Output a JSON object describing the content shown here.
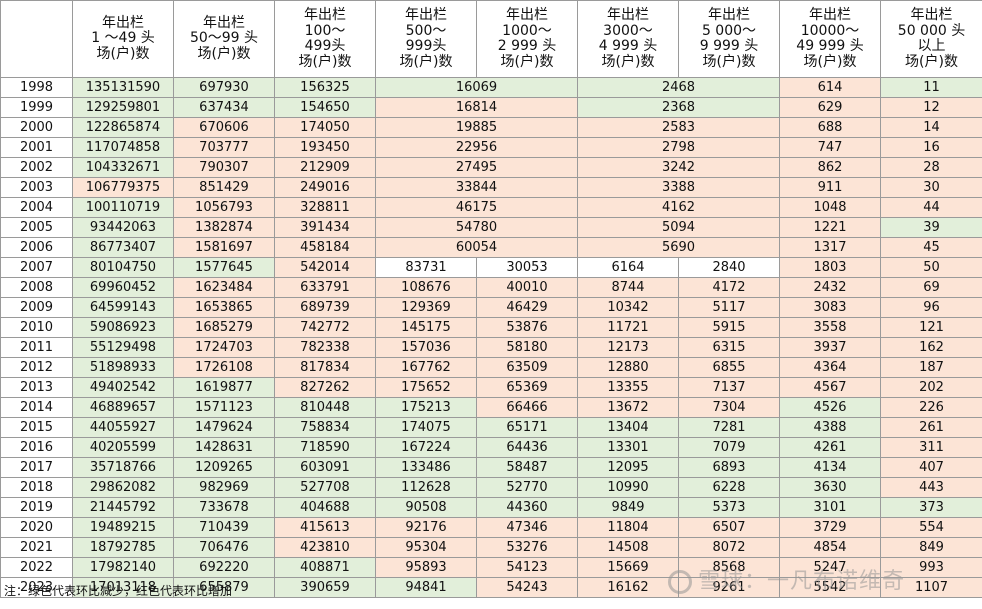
{
  "headers": [
    "",
    "年出栏\n1 ～49 头\n场(户)数",
    "年出栏\n50～99 头\n场(户)数",
    "年出栏\n100～\n499头\n场(户)数",
    "年出栏\n500～\n999头\n场(户)数",
    "年出栏\n1000～\n2 999 头\n场(户)数",
    "年出栏\n3000～\n4 999 头\n场(户)数",
    "年出栏\n5 000～\n9 999 头\n场(户)数",
    "年出栏\n10000～\n49 999 头\n场(户)数",
    "年出栏\n50 000 头\n以上\n场(户)数"
  ],
  "rows": [
    {
      "cells": [
        [
          "1998",
          "year",
          1
        ],
        [
          "135131590",
          "g",
          1
        ],
        [
          "697930",
          "g",
          1
        ],
        [
          "156325",
          "g",
          1
        ],
        [
          "16069",
          "g",
          2
        ],
        [
          "2468",
          "g",
          2
        ],
        [
          "614",
          "r",
          1
        ],
        [
          "11",
          "g",
          1
        ]
      ]
    },
    {
      "cells": [
        [
          "1999",
          "year",
          1
        ],
        [
          "129259801",
          "g",
          1
        ],
        [
          "637434",
          "g",
          1
        ],
        [
          "154650",
          "g",
          1
        ],
        [
          "16814",
          "r",
          2
        ],
        [
          "2368",
          "g",
          2
        ],
        [
          "629",
          "r",
          1
        ],
        [
          "12",
          "r",
          1
        ]
      ]
    },
    {
      "cells": [
        [
          "2000",
          "year",
          1
        ],
        [
          "122865874",
          "g",
          1
        ],
        [
          "670606",
          "r",
          1
        ],
        [
          "174050",
          "r",
          1
        ],
        [
          "19885",
          "r",
          2
        ],
        [
          "2583",
          "r",
          2
        ],
        [
          "688",
          "r",
          1
        ],
        [
          "14",
          "r",
          1
        ]
      ]
    },
    {
      "cells": [
        [
          "2001",
          "year",
          1
        ],
        [
          "117074858",
          "g",
          1
        ],
        [
          "703777",
          "r",
          1
        ],
        [
          "193450",
          "r",
          1
        ],
        [
          "22956",
          "r",
          2
        ],
        [
          "2798",
          "r",
          2
        ],
        [
          "747",
          "r",
          1
        ],
        [
          "16",
          "r",
          1
        ]
      ]
    },
    {
      "cells": [
        [
          "2002",
          "year",
          1
        ],
        [
          "104332671",
          "g",
          1
        ],
        [
          "790307",
          "r",
          1
        ],
        [
          "212909",
          "r",
          1
        ],
        [
          "27495",
          "r",
          2
        ],
        [
          "3242",
          "r",
          2
        ],
        [
          "862",
          "r",
          1
        ],
        [
          "28",
          "r",
          1
        ]
      ]
    },
    {
      "cells": [
        [
          "2003",
          "year",
          1
        ],
        [
          "106779375",
          "r",
          1
        ],
        [
          "851429",
          "r",
          1
        ],
        [
          "249016",
          "r",
          1
        ],
        [
          "33844",
          "r",
          2
        ],
        [
          "3388",
          "r",
          2
        ],
        [
          "911",
          "r",
          1
        ],
        [
          "30",
          "r",
          1
        ]
      ]
    },
    {
      "cells": [
        [
          "2004",
          "year",
          1
        ],
        [
          "100110719",
          "g",
          1
        ],
        [
          "1056793",
          "r",
          1
        ],
        [
          "328811",
          "r",
          1
        ],
        [
          "46175",
          "r",
          2
        ],
        [
          "4162",
          "r",
          2
        ],
        [
          "1048",
          "r",
          1
        ],
        [
          "44",
          "r",
          1
        ]
      ]
    },
    {
      "cells": [
        [
          "2005",
          "year",
          1
        ],
        [
          "93442063",
          "g",
          1
        ],
        [
          "1382874",
          "r",
          1
        ],
        [
          "391434",
          "r",
          1
        ],
        [
          "54780",
          "r",
          2
        ],
        [
          "5094",
          "r",
          2
        ],
        [
          "1221",
          "r",
          1
        ],
        [
          "39",
          "g",
          1
        ]
      ]
    },
    {
      "cells": [
        [
          "2006",
          "year",
          1
        ],
        [
          "86773407",
          "g",
          1
        ],
        [
          "1581697",
          "r",
          1
        ],
        [
          "458184",
          "r",
          1
        ],
        [
          "60054",
          "r",
          2
        ],
        [
          "5690",
          "r",
          2
        ],
        [
          "1317",
          "r",
          1
        ],
        [
          "45",
          "r",
          1
        ]
      ]
    },
    {
      "cells": [
        [
          "2007",
          "year",
          1
        ],
        [
          "80104750",
          "g",
          1
        ],
        [
          "1577645",
          "g",
          1
        ],
        [
          "542014",
          "r",
          1
        ],
        [
          "83731",
          "w",
          1
        ],
        [
          "30053",
          "w",
          1
        ],
        [
          "6164",
          "w",
          1
        ],
        [
          "2840",
          "w",
          1
        ],
        [
          "1803",
          "r",
          1
        ],
        [
          "50",
          "r",
          1
        ]
      ]
    },
    {
      "cells": [
        [
          "2008",
          "year",
          1
        ],
        [
          "69960452",
          "g",
          1
        ],
        [
          "1623484",
          "r",
          1
        ],
        [
          "633791",
          "r",
          1
        ],
        [
          "108676",
          "r",
          1
        ],
        [
          "40010",
          "r",
          1
        ],
        [
          "8744",
          "r",
          1
        ],
        [
          "4172",
          "r",
          1
        ],
        [
          "2432",
          "r",
          1
        ],
        [
          "69",
          "r",
          1
        ]
      ]
    },
    {
      "cells": [
        [
          "2009",
          "year",
          1
        ],
        [
          "64599143",
          "g",
          1
        ],
        [
          "1653865",
          "r",
          1
        ],
        [
          "689739",
          "r",
          1
        ],
        [
          "129369",
          "r",
          1
        ],
        [
          "46429",
          "r",
          1
        ],
        [
          "10342",
          "r",
          1
        ],
        [
          "5117",
          "r",
          1
        ],
        [
          "3083",
          "r",
          1
        ],
        [
          "96",
          "r",
          1
        ]
      ]
    },
    {
      "cells": [
        [
          "2010",
          "year",
          1
        ],
        [
          "59086923",
          "g",
          1
        ],
        [
          "1685279",
          "r",
          1
        ],
        [
          "742772",
          "r",
          1
        ],
        [
          "145175",
          "r",
          1
        ],
        [
          "53876",
          "r",
          1
        ],
        [
          "11721",
          "r",
          1
        ],
        [
          "5915",
          "r",
          1
        ],
        [
          "3558",
          "r",
          1
        ],
        [
          "121",
          "r",
          1
        ]
      ]
    },
    {
      "cells": [
        [
          "2011",
          "year",
          1
        ],
        [
          "55129498",
          "g",
          1
        ],
        [
          "1724703",
          "r",
          1
        ],
        [
          "782338",
          "r",
          1
        ],
        [
          "157036",
          "r",
          1
        ],
        [
          "58180",
          "r",
          1
        ],
        [
          "12173",
          "r",
          1
        ],
        [
          "6315",
          "r",
          1
        ],
        [
          "3937",
          "r",
          1
        ],
        [
          "162",
          "r",
          1
        ]
      ]
    },
    {
      "cells": [
        [
          "2012",
          "year",
          1
        ],
        [
          "51898933",
          "g",
          1
        ],
        [
          "1726108",
          "r",
          1
        ],
        [
          "817834",
          "r",
          1
        ],
        [
          "167762",
          "r",
          1
        ],
        [
          "63509",
          "r",
          1
        ],
        [
          "12880",
          "r",
          1
        ],
        [
          "6855",
          "r",
          1
        ],
        [
          "4364",
          "r",
          1
        ],
        [
          "187",
          "r",
          1
        ]
      ]
    },
    {
      "cells": [
        [
          "2013",
          "year",
          1
        ],
        [
          "49402542",
          "g",
          1
        ],
        [
          "1619877",
          "g",
          1
        ],
        [
          "827262",
          "r",
          1
        ],
        [
          "175652",
          "r",
          1
        ],
        [
          "65369",
          "r",
          1
        ],
        [
          "13355",
          "r",
          1
        ],
        [
          "7137",
          "r",
          1
        ],
        [
          "4567",
          "r",
          1
        ],
        [
          "202",
          "r",
          1
        ]
      ]
    },
    {
      "cells": [
        [
          "2014",
          "year",
          1
        ],
        [
          "46889657",
          "g",
          1
        ],
        [
          "1571123",
          "g",
          1
        ],
        [
          "810448",
          "g",
          1
        ],
        [
          "175213",
          "g",
          1
        ],
        [
          "66466",
          "r",
          1
        ],
        [
          "13672",
          "r",
          1
        ],
        [
          "7304",
          "r",
          1
        ],
        [
          "4526",
          "g",
          1
        ],
        [
          "226",
          "r",
          1
        ]
      ]
    },
    {
      "cells": [
        [
          "2015",
          "year",
          1
        ],
        [
          "44055927",
          "g",
          1
        ],
        [
          "1479624",
          "g",
          1
        ],
        [
          "758834",
          "g",
          1
        ],
        [
          "174075",
          "g",
          1
        ],
        [
          "65171",
          "g",
          1
        ],
        [
          "13404",
          "g",
          1
        ],
        [
          "7281",
          "g",
          1
        ],
        [
          "4388",
          "g",
          1
        ],
        [
          "261",
          "r",
          1
        ]
      ]
    },
    {
      "cells": [
        [
          "2016",
          "year",
          1
        ],
        [
          "40205599",
          "g",
          1
        ],
        [
          "1428631",
          "g",
          1
        ],
        [
          "718590",
          "g",
          1
        ],
        [
          "167224",
          "g",
          1
        ],
        [
          "64436",
          "g",
          1
        ],
        [
          "13301",
          "g",
          1
        ],
        [
          "7079",
          "g",
          1
        ],
        [
          "4261",
          "g",
          1
        ],
        [
          "311",
          "r",
          1
        ]
      ]
    },
    {
      "cells": [
        [
          "2017",
          "year",
          1
        ],
        [
          "35718766",
          "g",
          1
        ],
        [
          "1209265",
          "g",
          1
        ],
        [
          "603091",
          "g",
          1
        ],
        [
          "133486",
          "g",
          1
        ],
        [
          "58487",
          "g",
          1
        ],
        [
          "12095",
          "g",
          1
        ],
        [
          "6893",
          "g",
          1
        ],
        [
          "4134",
          "g",
          1
        ],
        [
          "407",
          "r",
          1
        ]
      ]
    },
    {
      "cells": [
        [
          "2018",
          "year",
          1
        ],
        [
          "29862082",
          "g",
          1
        ],
        [
          "982969",
          "g",
          1
        ],
        [
          "527708",
          "g",
          1
        ],
        [
          "112628",
          "g",
          1
        ],
        [
          "52770",
          "g",
          1
        ],
        [
          "10990",
          "g",
          1
        ],
        [
          "6228",
          "g",
          1
        ],
        [
          "3630",
          "g",
          1
        ],
        [
          "443",
          "r",
          1
        ]
      ]
    },
    {
      "cells": [
        [
          "2019",
          "year",
          1
        ],
        [
          "21445792",
          "g",
          1
        ],
        [
          "733678",
          "g",
          1
        ],
        [
          "404688",
          "g",
          1
        ],
        [
          "90508",
          "g",
          1
        ],
        [
          "44360",
          "g",
          1
        ],
        [
          "9849",
          "g",
          1
        ],
        [
          "5373",
          "g",
          1
        ],
        [
          "3101",
          "g",
          1
        ],
        [
          "373",
          "g",
          1
        ]
      ]
    },
    {
      "cells": [
        [
          "2020",
          "year",
          1
        ],
        [
          "19489215",
          "g",
          1
        ],
        [
          "710439",
          "g",
          1
        ],
        [
          "415613",
          "r",
          1
        ],
        [
          "92176",
          "r",
          1
        ],
        [
          "47346",
          "r",
          1
        ],
        [
          "11804",
          "r",
          1
        ],
        [
          "6507",
          "r",
          1
        ],
        [
          "3729",
          "r",
          1
        ],
        [
          "554",
          "r",
          1
        ]
      ]
    },
    {
      "cells": [
        [
          "2021",
          "year",
          1
        ],
        [
          "18792785",
          "g",
          1
        ],
        [
          "706476",
          "g",
          1
        ],
        [
          "423810",
          "r",
          1
        ],
        [
          "95304",
          "r",
          1
        ],
        [
          "53276",
          "r",
          1
        ],
        [
          "14508",
          "r",
          1
        ],
        [
          "8072",
          "r",
          1
        ],
        [
          "4854",
          "r",
          1
        ],
        [
          "849",
          "r",
          1
        ]
      ]
    },
    {
      "cells": [
        [
          "2022",
          "year",
          1
        ],
        [
          "17982140",
          "g",
          1
        ],
        [
          "692220",
          "g",
          1
        ],
        [
          "408871",
          "g",
          1
        ],
        [
          "95893",
          "r",
          1
        ],
        [
          "54123",
          "r",
          1
        ],
        [
          "15669",
          "r",
          1
        ],
        [
          "8568",
          "r",
          1
        ],
        [
          "5247",
          "r",
          1
        ],
        [
          "993",
          "r",
          1
        ]
      ]
    },
    {
      "cells": [
        [
          "2023",
          "year",
          1
        ],
        [
          "17013118",
          "g",
          1
        ],
        [
          "655879",
          "g",
          1
        ],
        [
          "390659",
          "g",
          1
        ],
        [
          "94841",
          "g",
          1
        ],
        [
          "54243",
          "r",
          1
        ],
        [
          "16162",
          "r",
          1
        ],
        [
          "9261",
          "r",
          1
        ],
        [
          "5542",
          "r",
          1
        ],
        [
          "1107",
          "r",
          1
        ]
      ]
    }
  ],
  "note": "注：绿色代表环比减少，红色代表环比增加",
  "watermark": "雪球：一凡布诺维奇",
  "colors": {
    "decrease": "#e2efda",
    "increase": "#fce4d6"
  }
}
